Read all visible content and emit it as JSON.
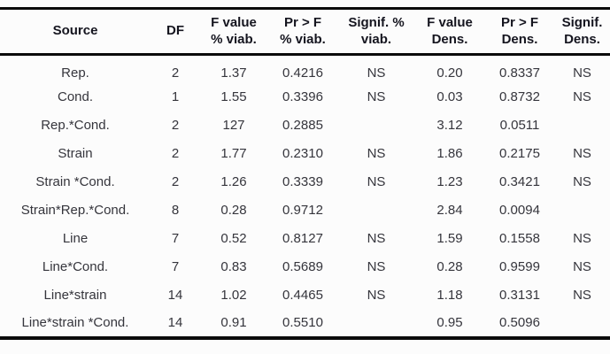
{
  "table": {
    "columns": [
      {
        "id": "source",
        "line1": "Source",
        "line2": ""
      },
      {
        "id": "df",
        "line1": "DF",
        "line2": ""
      },
      {
        "id": "fvalue-viab",
        "line1": "F value",
        "line2": "% viab."
      },
      {
        "id": "prf-viab",
        "line1": "Pr > F",
        "line2": "% viab."
      },
      {
        "id": "signif-viab",
        "line1": "Signif. %",
        "line2": "viab."
      },
      {
        "id": "fvalue-dens",
        "line1": "F value",
        "line2": "Dens."
      },
      {
        "id": "prf-dens",
        "line1": "Pr > F",
        "line2": "Dens."
      },
      {
        "id": "signif-dens",
        "line1": "Signif.",
        "line2": "Dens."
      }
    ],
    "rows": [
      [
        "Rep.",
        "2",
        "1.37",
        "0.4216",
        "NS",
        "0.20",
        "0.8337",
        "NS"
      ],
      [
        "Cond.",
        "1",
        "1.55",
        "0.3396",
        "NS",
        "0.03",
        "0.8732",
        "NS"
      ],
      [
        "Rep.*Cond.",
        "2",
        "127",
        "0.2885",
        "",
        "3.12",
        "0.0511",
        ""
      ],
      [
        "Strain",
        "2",
        "1.77",
        "0.2310",
        "NS",
        "1.86",
        "0.2175",
        "NS"
      ],
      [
        "Strain *Cond.",
        "2",
        "1.26",
        "0.3339",
        "NS",
        "1.23",
        "0.3421",
        "NS"
      ],
      [
        "Strain*Rep.*Cond.",
        "8",
        "0.28",
        "0.9712",
        "",
        "2.84",
        "0.0094",
        ""
      ],
      [
        "Line",
        "7",
        "0.52",
        "0.8127",
        "NS",
        "1.59",
        "0.1558",
        "NS"
      ],
      [
        "Line*Cond.",
        "7",
        "0.83",
        "0.5689",
        "NS",
        "0.28",
        "0.9599",
        "NS"
      ],
      [
        "Line*strain",
        "14",
        "1.02",
        "0.4465",
        "NS",
        "1.18",
        "0.3131",
        "NS"
      ],
      [
        "Line*strain *Cond.",
        "14",
        "0.91",
        "0.5510",
        "",
        "0.95",
        "0.5096",
        ""
      ]
    ]
  },
  "colors": {
    "border": "#0b0b0b",
    "header_text": "#15151f",
    "body_text": "#35353c",
    "background": "#fcfcfc"
  }
}
